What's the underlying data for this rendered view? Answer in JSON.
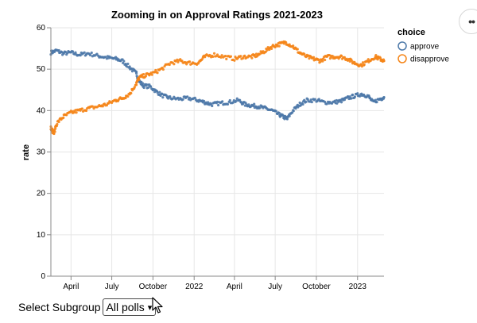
{
  "actions": {
    "more_label": "••"
  },
  "controls": {
    "label": "Select Subgroup",
    "selected": "All polls",
    "options": [
      "All polls"
    ]
  },
  "icons": {
    "more": "ellipsis-icon",
    "cursor": "mouse-pointer-icon",
    "dropdown": "chevron-down-icon"
  },
  "chart_data": {
    "type": "scatter",
    "title": "Zooming in on Approval Ratings 2021-2023",
    "xlabel": "",
    "ylabel": "rate",
    "ylim": [
      0,
      60
    ],
    "xlim": [
      "2021-02-15",
      "2023-03-01"
    ],
    "yticks": [
      0,
      10,
      20,
      30,
      40,
      50,
      60
    ],
    "xticks": [
      {
        "date": "2021-04-01",
        "label": "April"
      },
      {
        "date": "2021-07-01",
        "label": "July"
      },
      {
        "date": "2021-10-01",
        "label": "October"
      },
      {
        "date": "2022-01-01",
        "label": "2022"
      },
      {
        "date": "2022-04-01",
        "label": "April"
      },
      {
        "date": "2022-07-01",
        "label": "July"
      },
      {
        "date": "2022-10-01",
        "label": "October"
      },
      {
        "date": "2023-01-01",
        "label": "2023"
      }
    ],
    "grid": true,
    "legend": {
      "title": "choice",
      "position": "top-right"
    },
    "series": [
      {
        "name": "approve",
        "color": "#4c78a8",
        "points": [
          [
            "2021-02-15",
            54.0
          ],
          [
            "2021-02-28",
            54.5
          ],
          [
            "2021-03-15",
            53.8
          ],
          [
            "2021-04-01",
            54.0
          ],
          [
            "2021-04-20",
            53.5
          ],
          [
            "2021-05-10",
            53.8
          ],
          [
            "2021-06-01",
            53.2
          ],
          [
            "2021-06-20",
            52.8
          ],
          [
            "2021-07-10",
            52.5
          ],
          [
            "2021-07-25",
            52.0
          ],
          [
            "2021-08-10",
            50.5
          ],
          [
            "2021-08-25",
            49.0
          ],
          [
            "2021-09-01",
            47.0
          ],
          [
            "2021-09-10",
            46.0
          ],
          [
            "2021-09-25",
            45.8
          ],
          [
            "2021-10-10",
            44.5
          ],
          [
            "2021-10-25",
            43.5
          ],
          [
            "2021-11-10",
            43.0
          ],
          [
            "2021-12-01",
            42.8
          ],
          [
            "2021-12-20",
            43.0
          ],
          [
            "2022-01-10",
            42.5
          ],
          [
            "2022-01-25",
            42.0
          ],
          [
            "2022-02-10",
            41.5
          ],
          [
            "2022-03-01",
            41.8
          ],
          [
            "2022-03-20",
            42.0
          ],
          [
            "2022-04-10",
            42.5
          ],
          [
            "2022-04-25",
            41.5
          ],
          [
            "2022-05-10",
            41.2
          ],
          [
            "2022-05-25",
            41.0
          ],
          [
            "2022-06-10",
            40.5
          ],
          [
            "2022-06-25",
            40.0
          ],
          [
            "2022-07-10",
            39.0
          ],
          [
            "2022-07-20",
            38.5
          ],
          [
            "2022-07-28",
            38.0
          ],
          [
            "2022-08-10",
            40.0
          ],
          [
            "2022-08-25",
            41.5
          ],
          [
            "2022-09-10",
            42.5
          ],
          [
            "2022-10-01",
            42.5
          ],
          [
            "2022-10-20",
            42.0
          ],
          [
            "2022-11-10",
            42.0
          ],
          [
            "2022-11-25",
            42.3
          ],
          [
            "2022-12-10",
            43.0
          ],
          [
            "2022-12-25",
            43.5
          ],
          [
            "2023-01-10",
            44.0
          ],
          [
            "2023-01-25",
            43.5
          ],
          [
            "2023-02-05",
            42.0
          ],
          [
            "2023-02-20",
            42.8
          ],
          [
            "2023-03-01",
            43.2
          ]
        ]
      },
      {
        "name": "disapprove",
        "color": "#f58518",
        "points": [
          [
            "2021-02-15",
            36.0
          ],
          [
            "2021-02-22",
            34.5
          ],
          [
            "2021-03-01",
            37.0
          ],
          [
            "2021-03-15",
            38.5
          ],
          [
            "2021-04-01",
            39.5
          ],
          [
            "2021-04-20",
            40.0
          ],
          [
            "2021-05-10",
            40.5
          ],
          [
            "2021-06-01",
            41.0
          ],
          [
            "2021-06-20",
            41.5
          ],
          [
            "2021-07-10",
            42.5
          ],
          [
            "2021-07-25",
            43.0
          ],
          [
            "2021-08-10",
            44.0
          ],
          [
            "2021-08-25",
            46.5
          ],
          [
            "2021-09-01",
            48.0
          ],
          [
            "2021-09-15",
            48.5
          ],
          [
            "2021-10-01",
            49.0
          ],
          [
            "2021-10-20",
            50.0
          ],
          [
            "2021-11-10",
            51.5
          ],
          [
            "2021-12-01",
            52.0
          ],
          [
            "2021-12-20",
            51.5
          ],
          [
            "2022-01-10",
            51.5
          ],
          [
            "2022-01-25",
            53.0
          ],
          [
            "2022-02-15",
            53.5
          ],
          [
            "2022-03-10",
            53.0
          ],
          [
            "2022-04-01",
            52.5
          ],
          [
            "2022-04-20",
            53.0
          ],
          [
            "2022-05-10",
            53.0
          ],
          [
            "2022-05-25",
            53.5
          ],
          [
            "2022-06-10",
            54.5
          ],
          [
            "2022-06-25",
            55.5
          ],
          [
            "2022-07-10",
            56.0
          ],
          [
            "2022-07-25",
            56.5
          ],
          [
            "2022-08-10",
            55.5
          ],
          [
            "2022-08-25",
            54.0
          ],
          [
            "2022-09-10",
            53.0
          ],
          [
            "2022-09-25",
            52.5
          ],
          [
            "2022-10-10",
            52.0
          ],
          [
            "2022-10-25",
            53.0
          ],
          [
            "2022-11-10",
            53.0
          ],
          [
            "2022-11-25",
            53.0
          ],
          [
            "2022-12-10",
            52.5
          ],
          [
            "2022-12-25",
            51.5
          ],
          [
            "2023-01-10",
            51.0
          ],
          [
            "2023-01-25",
            52.0
          ],
          [
            "2023-02-10",
            53.0
          ],
          [
            "2023-02-20",
            52.5
          ],
          [
            "2023-03-01",
            52.0
          ]
        ]
      }
    ]
  }
}
